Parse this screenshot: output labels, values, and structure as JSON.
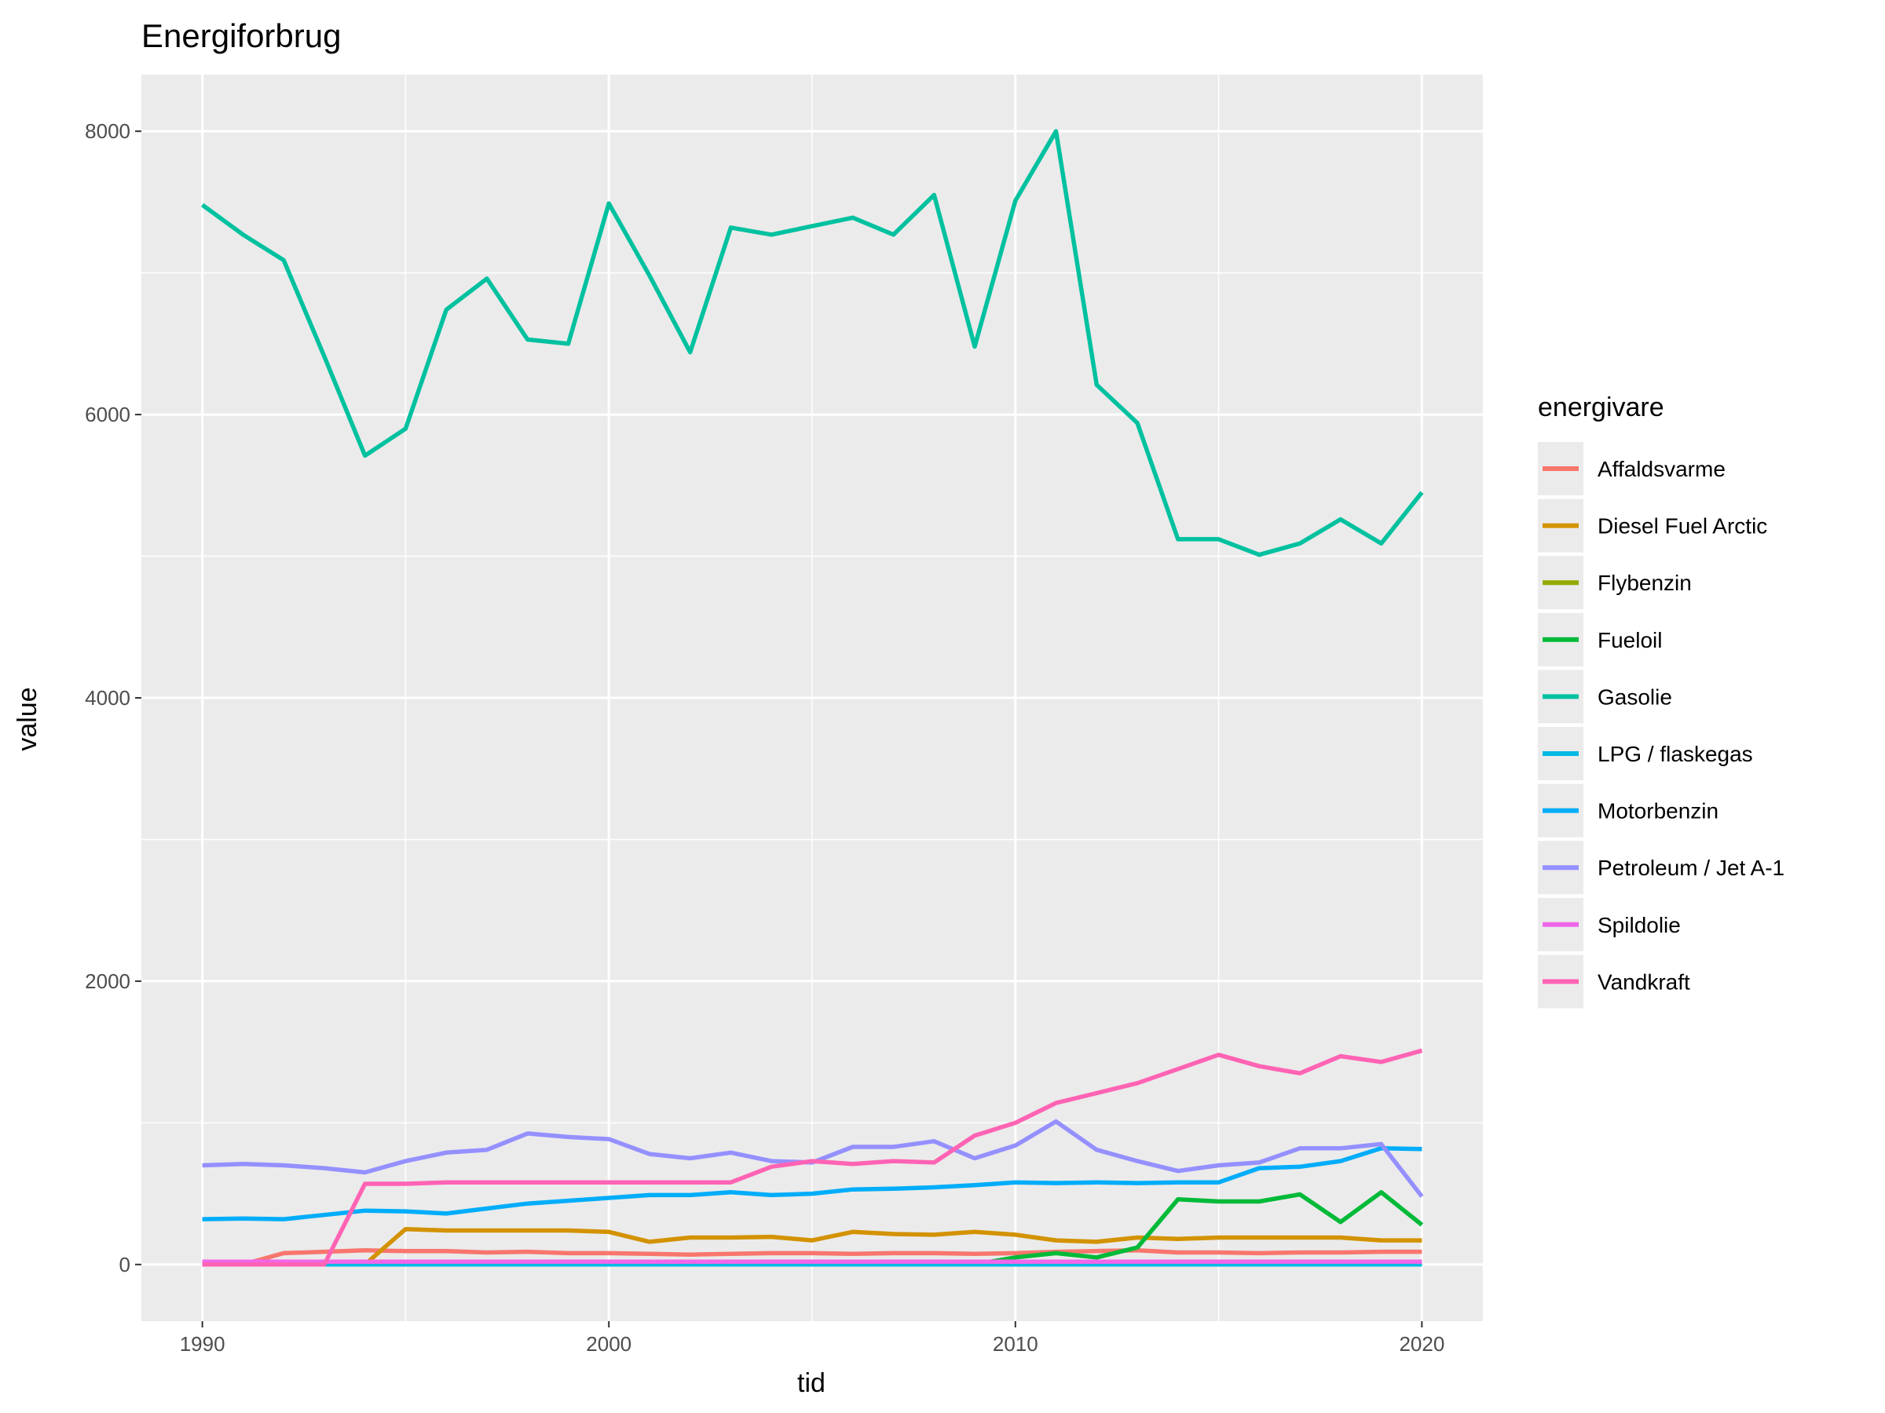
{
  "chart_data": {
    "type": "line",
    "title": "Energiforbrug",
    "xlabel": "tid",
    "ylabel": "value",
    "xlim": [
      1988.5,
      2021.5
    ],
    "ylim": [
      -400,
      8400
    ],
    "x_ticks": [
      1990,
      2000,
      2010,
      2020
    ],
    "y_ticks": [
      0,
      2000,
      4000,
      6000,
      8000
    ],
    "legend_title": "energivare",
    "legend_position": "right",
    "grid": true,
    "background": "#EBEBEB",
    "x": [
      1990,
      1991,
      1992,
      1993,
      1994,
      1995,
      1996,
      1997,
      1998,
      1999,
      2000,
      2001,
      2002,
      2003,
      2004,
      2005,
      2006,
      2007,
      2008,
      2009,
      2010,
      2011,
      2012,
      2013,
      2014,
      2015,
      2016,
      2017,
      2018,
      2019,
      2020
    ],
    "series": [
      {
        "name": "Affaldsvarme",
        "color": "#F8766D",
        "values": [
          0,
          0,
          80,
          90,
          100,
          95,
          95,
          85,
          90,
          80,
          80,
          75,
          70,
          75,
          80,
          80,
          75,
          80,
          80,
          75,
          80,
          90,
          95,
          100,
          85,
          85,
          80,
          85,
          85,
          90,
          90
        ]
      },
      {
        "name": "Diesel Fuel Arctic",
        "color": "#D39200",
        "values": [
          0,
          0,
          0,
          0,
          0,
          250,
          240,
          240,
          240,
          240,
          230,
          160,
          190,
          190,
          195,
          170,
          230,
          215,
          210,
          230,
          210,
          170,
          160,
          190,
          180,
          190,
          190,
          190,
          190,
          170,
          170
        ]
      },
      {
        "name": "Flybenzin",
        "color": "#93AA00",
        "values": [
          0,
          0,
          0,
          0,
          0,
          0,
          0,
          0,
          0,
          0,
          0,
          0,
          0,
          0,
          0,
          0,
          0,
          0,
          0,
          0,
          0,
          0,
          0,
          0,
          0,
          0,
          0,
          0,
          0,
          0,
          0
        ]
      },
      {
        "name": "Fueloil",
        "color": "#00BA38",
        "values": [
          0,
          0,
          0,
          0,
          0,
          0,
          0,
          0,
          0,
          0,
          0,
          0,
          0,
          0,
          0,
          0,
          0,
          0,
          0,
          0,
          50,
          80,
          50,
          120,
          460,
          445,
          445,
          495,
          300,
          510,
          280
        ]
      },
      {
        "name": "Gasolie",
        "color": "#00C19F",
        "values": [
          7480,
          7270,
          7090,
          6410,
          5710,
          5900,
          6740,
          6960,
          6530,
          6500,
          7490,
          6980,
          6440,
          7320,
          7270,
          7330,
          7390,
          7270,
          7550,
          6480,
          7510,
          8000,
          6210,
          5940,
          5120,
          5120,
          5010,
          5090,
          5260,
          5090,
          5450
        ]
      },
      {
        "name": "LPG / flaskegas",
        "color": "#00B9E3",
        "values": [
          0,
          0,
          0,
          0,
          0,
          0,
          0,
          0,
          0,
          0,
          0,
          0,
          0,
          0,
          0,
          0,
          0,
          0,
          0,
          0,
          0,
          0,
          0,
          0,
          0,
          0,
          0,
          0,
          0,
          0,
          0
        ]
      },
      {
        "name": "Motorbenzin",
        "color": "#00ADFA",
        "values": [
          320,
          325,
          320,
          350,
          380,
          375,
          360,
          395,
          430,
          450,
          470,
          490,
          490,
          510,
          490,
          500,
          530,
          535,
          545,
          560,
          580,
          575,
          580,
          575,
          580,
          580,
          680,
          690,
          730,
          820,
          815
        ]
      },
      {
        "name": "Petroleum / Jet A-1",
        "color": "#9590FF",
        "values": [
          700,
          710,
          700,
          680,
          650,
          730,
          790,
          810,
          925,
          900,
          885,
          780,
          750,
          790,
          730,
          720,
          830,
          830,
          870,
          750,
          840,
          1010,
          810,
          730,
          660,
          700,
          720,
          820,
          820,
          850,
          480
        ]
      },
      {
        "name": "Spildolie",
        "color": "#F066EA",
        "values": [
          20,
          20,
          20,
          20,
          20,
          20,
          20,
          20,
          20,
          20,
          20,
          20,
          20,
          20,
          20,
          20,
          20,
          20,
          20,
          20,
          20,
          20,
          20,
          20,
          20,
          20,
          20,
          20,
          20,
          20,
          20
        ]
      },
      {
        "name": "Vandkraft",
        "color": "#FF63B4",
        "values": [
          0,
          0,
          0,
          0,
          570,
          570,
          580,
          580,
          580,
          580,
          580,
          580,
          580,
          580,
          690,
          730,
          710,
          730,
          720,
          910,
          1000,
          1140,
          1210,
          1280,
          1380,
          1480,
          1400,
          1350,
          1470,
          1430,
          1510
        ]
      }
    ]
  }
}
